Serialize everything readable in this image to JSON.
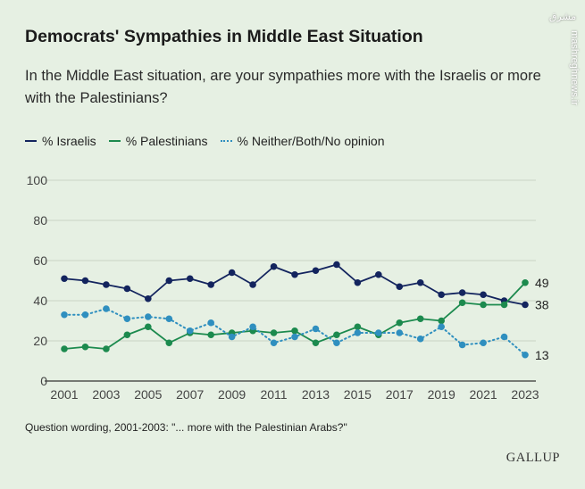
{
  "title": "Democrats' Sympathies in Middle East Situation",
  "subtitle": "In the Middle East situation, are your sympathies more with the Israelis or more with the Palestinians?",
  "footnote": "Question wording, 2001-2003: \"... more with the Palestinian Arabs?\"",
  "brand": "GALLUP",
  "watermark": {
    "logo": "مشرق",
    "url": "mashreghnews.ir"
  },
  "colors": {
    "israelis": "#13245e",
    "palestinians": "#1c8a4e",
    "neither": "#2f8fbf",
    "grid": "#c9d3c6",
    "background": "#e6f0e3"
  },
  "chart_data": {
    "type": "line",
    "x": [
      2001,
      2002,
      2003,
      2004,
      2005,
      2006,
      2007,
      2008,
      2009,
      2010,
      2011,
      2012,
      2013,
      2014,
      2015,
      2016,
      2017,
      2018,
      2019,
      2020,
      2021,
      2022,
      2023
    ],
    "x_ticks": [
      2001,
      2003,
      2005,
      2007,
      2009,
      2011,
      2013,
      2015,
      2017,
      2019,
      2021,
      2023
    ],
    "ylim": [
      0,
      100
    ],
    "y_ticks": [
      0,
      20,
      40,
      60,
      80,
      100
    ],
    "series": [
      {
        "key": "israelis",
        "name": "% Israelis",
        "style": "solid",
        "values": [
          51,
          50,
          48,
          46,
          41,
          50,
          51,
          48,
          54,
          48,
          57,
          53,
          55,
          58,
          49,
          53,
          47,
          49,
          43,
          44,
          43,
          40,
          38
        ],
        "end_label": "38"
      },
      {
        "key": "palestinians",
        "name": "% Palestinians",
        "style": "solid",
        "values": [
          16,
          17,
          16,
          23,
          27,
          19,
          24,
          23,
          24,
          25,
          24,
          25,
          19,
          23,
          27,
          23,
          29,
          31,
          30,
          39,
          38,
          38,
          49
        ],
        "end_label": "49"
      },
      {
        "key": "neither",
        "name": "% Neither/Both/No opinion",
        "style": "dotted",
        "values": [
          33,
          33,
          36,
          31,
          32,
          31,
          25,
          29,
          22,
          27,
          19,
          22,
          26,
          19,
          24,
          24,
          24,
          21,
          27,
          18,
          19,
          22,
          13
        ],
        "end_label": "13"
      }
    ]
  }
}
